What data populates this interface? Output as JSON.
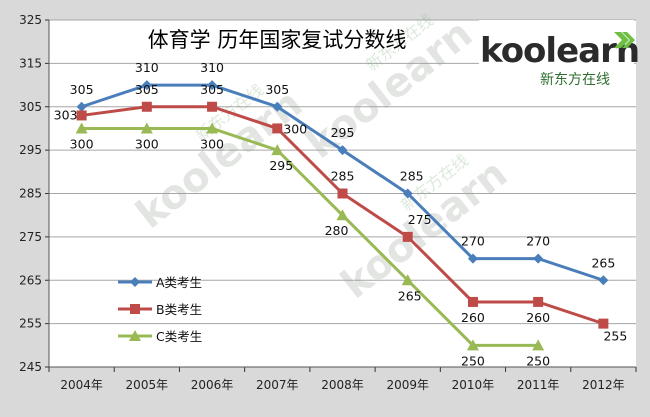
{
  "chart_data": {
    "type": "line",
    "title": "体育学  历年国家复试分数线",
    "categories": [
      "2004年",
      "2005年",
      "2006年",
      "2007年",
      "2008年",
      "2009年",
      "2010年",
      "2011年",
      "2012年"
    ],
    "ylim": [
      245,
      325
    ],
    "yticks": [
      245,
      255,
      265,
      275,
      285,
      295,
      305,
      315,
      325
    ],
    "grid": true,
    "legend_position": "bottom-left",
    "series": [
      {
        "name": "A类考生",
        "color": "#4a7ebb",
        "marker": "diamond",
        "values": [
          305,
          310,
          310,
          305,
          295,
          285,
          270,
          270,
          265
        ]
      },
      {
        "name": "B类考生",
        "color": "#be4b48",
        "marker": "square",
        "values": [
          303,
          305,
          305,
          300,
          285,
          275,
          260,
          260,
          255
        ]
      },
      {
        "name": "C类考生",
        "color": "#98b954",
        "marker": "triangle",
        "values": [
          300,
          300,
          300,
          295,
          280,
          265,
          250,
          250,
          null
        ]
      }
    ]
  },
  "logo": {
    "brand": "koolearn",
    "sub": "新东方在线"
  },
  "watermark": {
    "text": "koolearn",
    "sub": "新东方在线"
  },
  "colors": {
    "frame": "#d9d9d9",
    "plot_bg": "#ffffff",
    "grid": "#a6a6a6",
    "logo_arrow": "#6fbe44"
  }
}
